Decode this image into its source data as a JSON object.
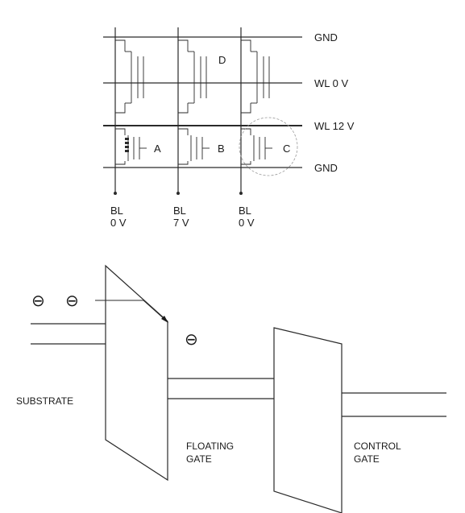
{
  "array": {
    "rails": [
      "GND",
      "WL 0 V",
      "WL 12 V",
      "GND"
    ],
    "cells": [
      "D",
      "A",
      "B",
      "C"
    ],
    "bitlines": [
      {
        "name": "BL",
        "voltage": "0 V"
      },
      {
        "name": "BL",
        "voltage": "7 V"
      },
      {
        "name": "BL",
        "voltage": "0 V"
      }
    ]
  },
  "band": {
    "electron_symbol": "⊖",
    "regions": {
      "substrate": "SUBSTRATE",
      "floating_gate": [
        "FLOATING",
        "GATE"
      ],
      "control_gate": [
        "CONTROL",
        "GATE"
      ]
    }
  }
}
